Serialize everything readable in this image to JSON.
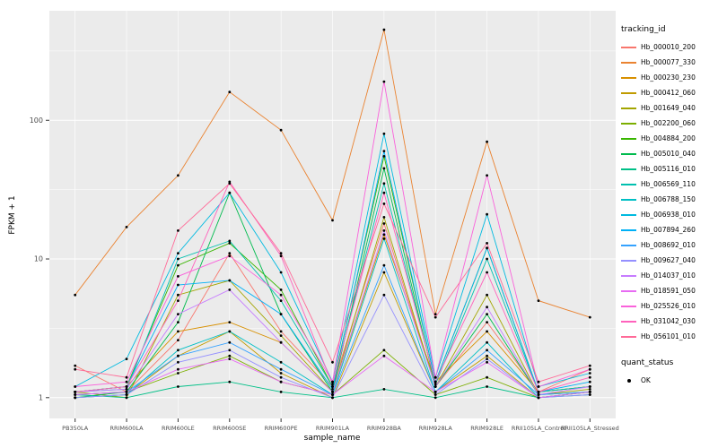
{
  "chart_data": {
    "type": "line",
    "title": "",
    "xlabel": "sample_name",
    "ylabel": "FPKM + 1",
    "legend_title": "tracking_id",
    "legend_position": "right",
    "y_scale": "log10",
    "ylim": [
      0.9,
      600
    ],
    "grid": true,
    "panel_bg": "#EBEBEB",
    "grid_color": "#FFFFFF",
    "point_color": "#000000",
    "axis_text_color": "#4D4D4D",
    "y_ticks": [
      1,
      10,
      100
    ],
    "y_tick_labels": [
      "1",
      "10",
      "100"
    ],
    "y_minor": [
      3.162,
      31.62,
      316.2
    ],
    "categories": [
      "PB350LA",
      "RRIM600LA",
      "RRIM600LE",
      "RRIM600SE",
      "RRIM600PE",
      "RRIM901LA",
      "RRIM928BA",
      "RRIM928LA",
      "RRIM928LE",
      "RRII105LA_Control",
      "RRII105LA_Stressed"
    ],
    "series": [
      {
        "name": "Hb_000010_200",
        "color": "#F8766D",
        "values": [
          1.7,
          1.1,
          2.6,
          11,
          3.0,
          1.2,
          18,
          1.2,
          3.5,
          1.1,
          1.6
        ]
      },
      {
        "name": "Hb_000077_330",
        "color": "#EA8331",
        "values": [
          5.5,
          17,
          40,
          160,
          85,
          19,
          450,
          4.0,
          70,
          5.0,
          3.8
        ]
      },
      {
        "name": "Hb_000230_230",
        "color": "#D89000",
        "values": [
          1.1,
          1.2,
          3.0,
          3.5,
          2.5,
          1.1,
          15,
          1.3,
          3.0,
          1.1,
          1.2
        ]
      },
      {
        "name": "Hb_000412_060",
        "color": "#C09B00",
        "values": [
          1.0,
          1.05,
          2.0,
          3.0,
          1.5,
          1.0,
          8.0,
          1.1,
          2.0,
          1.0,
          1.1
        ]
      },
      {
        "name": "Hb_001649_040",
        "color": "#A3A500",
        "values": [
          1.1,
          1.0,
          5.5,
          7.0,
          2.8,
          1.1,
          20,
          1.2,
          5.5,
          1.05,
          1.15
        ]
      },
      {
        "name": "Hb_002200_060",
        "color": "#7CAE00",
        "values": [
          1.05,
          1.1,
          1.5,
          2.0,
          1.3,
          1.05,
          2.2,
          1.05,
          1.4,
          1.0,
          1.1
        ]
      },
      {
        "name": "Hb_004884_200",
        "color": "#39B600",
        "values": [
          1.1,
          1.2,
          9.0,
          13,
          6.0,
          1.2,
          55,
          1.3,
          12,
          1.1,
          1.2
        ]
      },
      {
        "name": "Hb_005010_040",
        "color": "#00BB4E",
        "values": [
          1.0,
          1.1,
          3.5,
          30,
          4.0,
          1.1,
          45,
          1.2,
          4.0,
          1.05,
          1.1
        ]
      },
      {
        "name": "Hb_005116_010",
        "color": "#00C087",
        "values": [
          1.05,
          1.0,
          1.2,
          1.3,
          1.1,
          1.0,
          1.15,
          1.0,
          1.2,
          1.0,
          1.05
        ]
      },
      {
        "name": "Hb_006569_110",
        "color": "#00C0AF",
        "values": [
          1.1,
          1.15,
          10,
          13.5,
          5.0,
          1.2,
          35,
          1.25,
          10,
          1.1,
          1.2
        ]
      },
      {
        "name": "Hb_006788_150",
        "color": "#00BFC4",
        "values": [
          1.0,
          1.05,
          2.2,
          3.0,
          1.8,
          1.05,
          14,
          1.1,
          2.5,
          1.0,
          1.1
        ]
      },
      {
        "name": "Hb_006938_010",
        "color": "#00BAE0",
        "values": [
          1.2,
          1.9,
          11,
          30,
          8.0,
          1.3,
          80,
          1.4,
          21,
          1.2,
          1.5
        ]
      },
      {
        "name": "Hb_007894_260",
        "color": "#00B0F6",
        "values": [
          1.1,
          1.2,
          6.5,
          7.0,
          4.0,
          1.15,
          60,
          1.3,
          12,
          1.1,
          1.3
        ]
      },
      {
        "name": "Hb_008692_010",
        "color": "#35A2FF",
        "values": [
          1.05,
          1.1,
          2.0,
          2.5,
          1.6,
          1.05,
          9.0,
          1.1,
          2.2,
          1.05,
          1.1
        ]
      },
      {
        "name": "Hb_009627_040",
        "color": "#9590FF",
        "values": [
          1.0,
          1.05,
          1.8,
          2.2,
          1.4,
          1.0,
          5.5,
          1.05,
          1.9,
          1.0,
          1.05
        ]
      },
      {
        "name": "Hb_014037_010",
        "color": "#C77CFF",
        "values": [
          1.1,
          1.15,
          4.0,
          6.0,
          2.5,
          1.1,
          16,
          1.2,
          4.5,
          1.05,
          1.2
        ]
      },
      {
        "name": "Hb_018591_050",
        "color": "#E76BF3",
        "values": [
          1.05,
          1.1,
          1.6,
          1.9,
          1.3,
          1.05,
          2.0,
          1.1,
          1.8,
          1.0,
          1.1
        ]
      },
      {
        "name": "Hb_025526_010",
        "color": "#FA62DB",
        "values": [
          1.2,
          1.3,
          7.5,
          10.5,
          5.5,
          1.3,
          190,
          1.4,
          40,
          1.2,
          1.6
        ]
      },
      {
        "name": "Hb_031042_030",
        "color": "#FF62BC",
        "values": [
          1.1,
          1.2,
          5.0,
          36,
          10.5,
          1.25,
          30,
          1.3,
          8.0,
          1.1,
          1.4
        ]
      },
      {
        "name": "Hb_056101_010",
        "color": "#FF6A98",
        "values": [
          1.6,
          1.4,
          16,
          35,
          11,
          1.8,
          25,
          3.8,
          13,
          1.3,
          1.7
        ]
      }
    ],
    "quant_legend": {
      "title": "quant_status",
      "items": [
        "OK"
      ]
    }
  }
}
